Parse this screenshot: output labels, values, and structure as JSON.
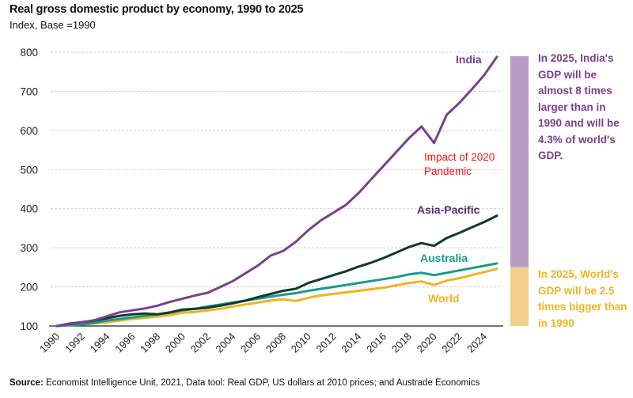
{
  "header": {
    "title": "Real gross domestic product by economy, 1990 to 2025",
    "subtitle": "Index, Base =1990"
  },
  "notes": {
    "india": "In 2025, India's GDP will be almost 8 times larger than in 1990 and will be 4.3% of world's GDP.",
    "world": "In 2025, World's GDP will be 2.5 times bigger than in 1990"
  },
  "source": {
    "label": "Source:",
    "text": "Economist Intelligence Unit, 2021, Data tool: Real GDP, US dollars at 2010 prices; and Austrade Economics"
  },
  "chart_data": {
    "type": "line",
    "title": "Real gross domestic product by economy, 1990 to 2025",
    "subtitle": "Index, Base =1990",
    "xlabel": "",
    "ylabel": "",
    "ylim": [
      100,
      800
    ],
    "yticks": [
      100,
      200,
      300,
      400,
      500,
      600,
      700,
      800
    ],
    "xlim": [
      1990,
      2025
    ],
    "xticks": [
      1990,
      1992,
      1994,
      1996,
      1998,
      2000,
      2002,
      2004,
      2006,
      2008,
      2010,
      2012,
      2014,
      2016,
      2018,
      2020,
      2022,
      2024
    ],
    "grid": true,
    "x": [
      1990,
      1991,
      1992,
      1993,
      1994,
      1995,
      1996,
      1997,
      1998,
      1999,
      2000,
      2001,
      2002,
      2003,
      2004,
      2005,
      2006,
      2007,
      2008,
      2009,
      2010,
      2011,
      2012,
      2013,
      2014,
      2015,
      2016,
      2017,
      2018,
      2019,
      2020,
      2021,
      2022,
      2023,
      2024,
      2025
    ],
    "series": [
      {
        "name": "India",
        "color": "#7b3f8c",
        "values": [
          100,
          105,
          110,
          115,
          125,
          135,
          140,
          145,
          152,
          162,
          170,
          178,
          185,
          200,
          215,
          235,
          255,
          280,
          292,
          315,
          345,
          370,
          390,
          410,
          440,
          475,
          510,
          545,
          580,
          610,
          568,
          640,
          670,
          705,
          742,
          788
        ]
      },
      {
        "name": "Asia-Pacific",
        "color": "#0f3b2c",
        "values": [
          100,
          106,
          110,
          114,
          120,
          126,
          130,
          132,
          130,
          135,
          142,
          144,
          147,
          152,
          158,
          165,
          174,
          182,
          190,
          195,
          210,
          220,
          230,
          240,
          252,
          262,
          274,
          288,
          302,
          312,
          305,
          325,
          338,
          352,
          366,
          382
        ]
      },
      {
        "name": "Australia",
        "color": "#1a9a8a",
        "values": [
          100,
          102,
          104,
          108,
          114,
          118,
          122,
          126,
          130,
          134,
          140,
          144,
          150,
          155,
          160,
          165,
          170,
          175,
          180,
          184,
          190,
          195,
          200,
          205,
          210,
          215,
          220,
          225,
          232,
          236,
          230,
          236,
          242,
          248,
          254,
          260
        ]
      },
      {
        "name": "World",
        "color": "#f0b323",
        "values": [
          100,
          102,
          104,
          106,
          110,
          114,
          118,
          121,
          124,
          128,
          134,
          136,
          140,
          144,
          150,
          155,
          160,
          165,
          168,
          164,
          172,
          178,
          182,
          186,
          190,
          194,
          198,
          204,
          210,
          214,
          205,
          216,
          222,
          230,
          238,
          246
        ]
      }
    ],
    "labels": [
      {
        "text": "India",
        "color": "#7b3f8c"
      },
      {
        "text": "Asia-Pacific",
        "color": "#5a2a6a"
      },
      {
        "text": "Australia",
        "color": "#1a9a8a"
      },
      {
        "text": "World",
        "color": "#f0b323"
      }
    ],
    "annotations": [
      {
        "text": "Impact of 2020 Pandemic",
        "color": "#ff1010"
      }
    ],
    "side_bars": [
      {
        "name": "India range",
        "from": 250,
        "to": 790,
        "color": "#b89cc4"
      },
      {
        "name": "World range",
        "from": 100,
        "to": 250,
        "color": "#f0d08a"
      }
    ]
  }
}
